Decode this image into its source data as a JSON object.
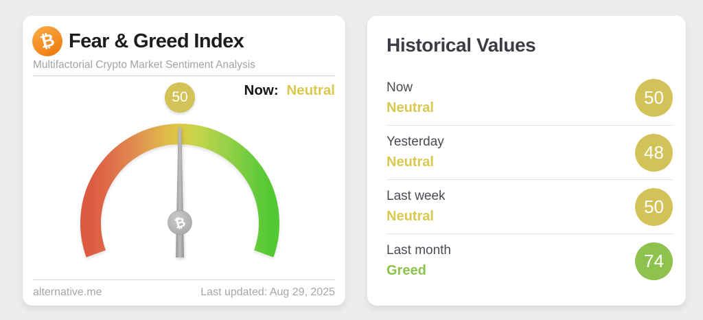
{
  "page": {
    "background": "#ececec"
  },
  "gauge_card": {
    "bitcoin_symbol": "₿",
    "title": "Fear & Greed Index",
    "subtitle": "Multifactorial Crypto Market Sentiment Analysis",
    "now_label": "Now:",
    "now_classification": "Neutral",
    "gauge_badge_value": "50",
    "footer_site": "alternative.me",
    "footer_updated": "Last updated: Aug 29, 2025"
  },
  "historical_card": {
    "title": "Historical Values",
    "rows": [
      {
        "period": "Now",
        "classification": "Neutral",
        "value": "50"
      },
      {
        "period": "Yesterday",
        "classification": "Neutral",
        "value": "48"
      },
      {
        "period": "Last week",
        "classification": "Neutral",
        "value": "50"
      },
      {
        "period": "Last month",
        "classification": "Greed",
        "value": "74"
      }
    ]
  },
  "colors": {
    "accent_yellow": "#d9c84e",
    "badge_yellow": "#d2c257",
    "accent_green": "#8bc34a",
    "badge_green": "#8cc24d",
    "bitcoin_orange": "#f7931a",
    "needle_gray": "#9d9d9d",
    "gauge_gradient": [
      "#db5b41",
      "#e07e4f",
      "#e2a94e",
      "#dcc946",
      "#c5d44a",
      "#8ed04a",
      "#5aca36"
    ]
  },
  "chart_data": {
    "type": "gauge",
    "title": "Fear & Greed Index",
    "value": 50,
    "classification": "Neutral",
    "min": 0,
    "max": 100,
    "arc_sweep_degrees": 220,
    "legend_position": "none",
    "historical": [
      {
        "period": "Now",
        "classification": "Neutral",
        "value": 50
      },
      {
        "period": "Yesterday",
        "classification": "Neutral",
        "value": 48
      },
      {
        "period": "Last week",
        "classification": "Neutral",
        "value": 50
      },
      {
        "period": "Last month",
        "classification": "Greed",
        "value": 74
      }
    ]
  }
}
